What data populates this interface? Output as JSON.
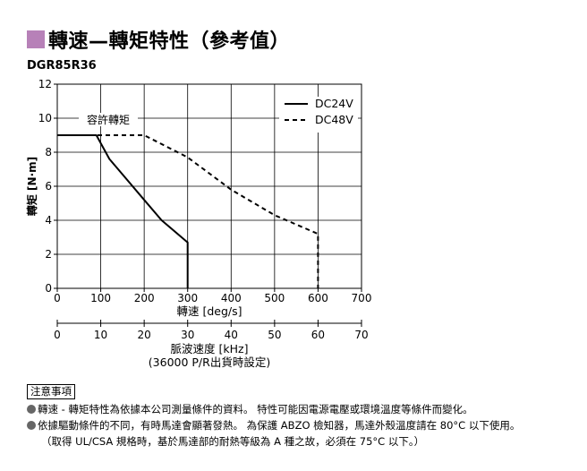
{
  "title": "轉速—轉矩特性（參考值）",
  "model": "DGR85R36",
  "chart_data": {
    "type": "line",
    "ylabel": "轉矩 [N·m]",
    "xlabel": "轉速 [deg/s]",
    "x2label": "脈波速度 [kHz]",
    "x2note": "(36000 P/R出貨時設定)",
    "xlim": [
      0,
      700
    ],
    "ylim": [
      0,
      12
    ],
    "xticks": [
      "0",
      "100",
      "200",
      "300",
      "400",
      "500",
      "600",
      "700"
    ],
    "yticks": [
      "0",
      "2",
      "4",
      "6",
      "8",
      "10",
      "12"
    ],
    "x2ticks": [
      "0",
      "10",
      "20",
      "30",
      "40",
      "50",
      "60",
      "70"
    ],
    "grid": true,
    "legend_position": "top-right",
    "annotation": "容許轉矩",
    "permissible_torque": 9.0,
    "series": [
      {
        "name": "DC24V",
        "style": "solid",
        "color": "#000000",
        "x": [
          0,
          90,
          120,
          200,
          240,
          300,
          300
        ],
        "y": [
          9.0,
          9.0,
          7.6,
          5.2,
          4.0,
          2.7,
          0
        ]
      },
      {
        "name": "DC48V",
        "style": "dashed",
        "color": "#000000",
        "x": [
          0,
          200,
          300,
          400,
          500,
          600,
          600
        ],
        "y": [
          9.0,
          9.0,
          7.7,
          5.8,
          4.3,
          3.2,
          0
        ]
      }
    ]
  },
  "notes": {
    "heading": "注意事項",
    "items": [
      "轉速 - 轉矩特性為依據本公司測量條件的資料。 特性可能因電源電壓或環境溫度等條件而變化。",
      "依據驅動條件的不同，有時馬達會顯著發熱。 為保護 ABZO 檢知器，馬達外殼溫度請在 80°C 以下使用。"
    ],
    "sub": "（取得 UL/CSA 規格時，基於馬達部的耐熱等級為 A 種之故，必須在 75°C 以下。）"
  },
  "colors": {
    "accent": "#b781b8",
    "bullet": "#666666"
  }
}
